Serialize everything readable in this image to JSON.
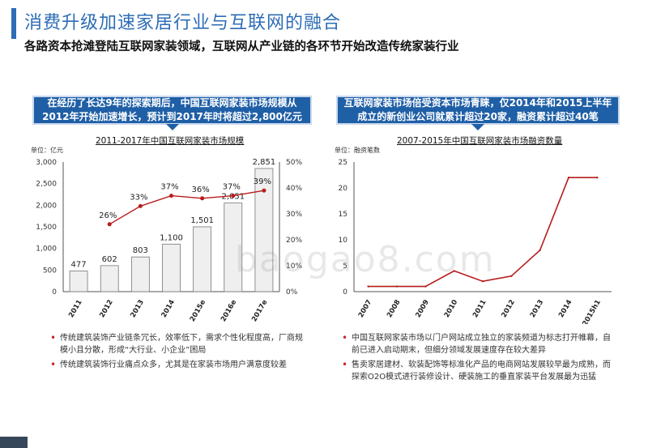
{
  "header": {
    "title": "消费升级加速家居行业与互联网的融合",
    "subtitle": "各路资本抢滩登陆互联网家装领域，互联网从产业链的各环节开始改造传统家装行业"
  },
  "left_panel": {
    "callout": "在经历了长达9年的探索期后，中国互联网家装市场规模从2012年开始加速增长，预计到2017年时将超过2,800亿元",
    "unit": "单位：亿元",
    "bullets": [
      "传统建筑装饰产业链条冗长，效率低下，需求个性化程度高，厂商规模小且分散，形成“大行业、小企业”困局",
      "传统建筑装饰行业痛点众多，尤其是在家装市场用户满意度较差"
    ]
  },
  "right_panel": {
    "callout": "互联网家装市场倍受资本市场青睐，仅2014年和2015上半年成立的新创业公司就累计超过20家，融资累计超过40笔",
    "unit": "单位：融资笔数",
    "bullets": [
      "中国互联网家装市场以门户网站成立独立的家装频道为标志打开帷幕，自前已进入启动期末，但细分领域发展速度存在较大差异",
      "售卖家居建材、软装配饰等标准化产品的电商网站发展较早最为成熟，而探索O2O模式进行装修设计、硬装施工的垂直家装平台发展最为迅猛"
    ]
  },
  "chart_data": [
    {
      "type": "bar",
      "title": "2011-2017年中国互联网家装市场规模",
      "categories": [
        "2011",
        "2012",
        "2013",
        "2014",
        "2015e",
        "2016e",
        "2017e"
      ],
      "series": [
        {
          "values": [
            477,
            602,
            803,
            1100,
            1501,
            2051,
            2851
          ],
          "value_labels": [
            "477",
            "602",
            "803",
            "1,100",
            "1,501",
            "2,051",
            "2,851"
          ]
        },
        {
          "type": "line",
          "axis": "right",
          "values": [
            null,
            26,
            33,
            37,
            36,
            37,
            39
          ],
          "value_labels": [
            "",
            "26%",
            "33%",
            "37%",
            "36%",
            "37%",
            "39%"
          ]
        }
      ],
      "ylim": [
        0,
        3000
      ],
      "y_ticks": [
        "0",
        "500",
        "1,000",
        "1,500",
        "2,000",
        "2,500",
        "3,000"
      ],
      "y2lim": [
        0,
        50
      ],
      "y2_ticks": [
        "0%",
        "10%",
        "20%",
        "30%",
        "40%",
        "50%"
      ],
      "grid": false,
      "colors": {
        "bar": "#efefef",
        "bar_stroke": "#777777",
        "line": "#b71c1c"
      }
    },
    {
      "type": "line",
      "title": "2007-2015年中国互联网家装市场融资数量",
      "categories": [
        "2007",
        "2008",
        "2009",
        "2010",
        "2011",
        "2012",
        "2013",
        "2014",
        "2015h1"
      ],
      "series": [
        {
          "values": [
            1,
            1,
            1,
            4,
            2,
            3,
            8,
            22,
            22
          ]
        }
      ],
      "ylim": [
        0,
        25
      ],
      "y_ticks": [
        "0",
        "5",
        "10",
        "15",
        "20",
        "25"
      ],
      "grid": false,
      "colors": {
        "line": "#b71c1c"
      }
    }
  ],
  "watermark": "baogao8.com",
  "colors": {
    "accent": "#2d6db5",
    "callout_bg": "#1f5fa6",
    "bullet": "#c62828"
  }
}
